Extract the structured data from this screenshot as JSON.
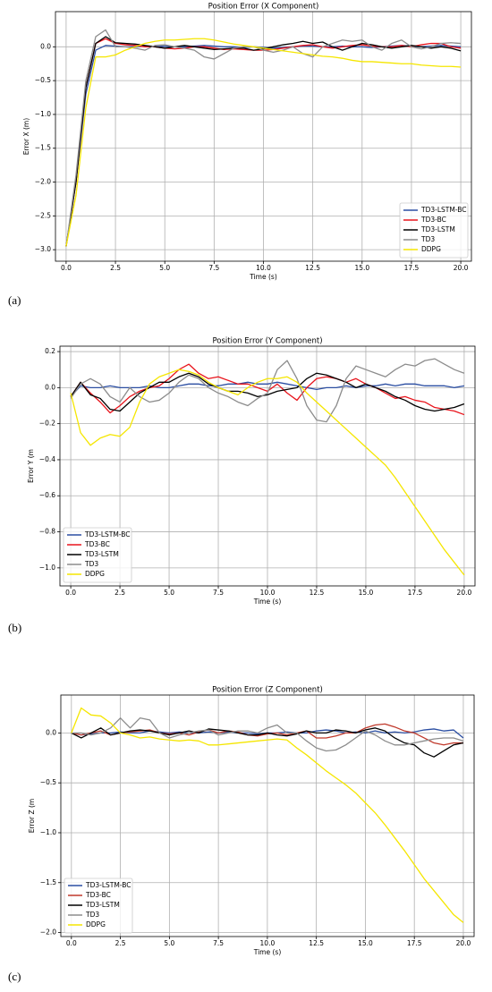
{
  "chart_data": [
    {
      "type": "line",
      "title": "Position Error (X Component)",
      "xlabel": "Time (s)",
      "ylabel": "Error X (m)",
      "label": "(a)",
      "grid": true,
      "legend": "lower right",
      "xlim": [
        -0.54,
        20.54
      ],
      "ylim": [
        -3.17,
        0.52
      ],
      "xticks": [
        {
          "value": 0,
          "label": "0.0"
        },
        2.5,
        {
          "value": 5,
          "label": "5.0"
        },
        7.5,
        {
          "value": 10,
          "label": "10.0"
        },
        12.5,
        {
          "value": 15,
          "label": "15.0"
        },
        17.5,
        {
          "value": 20,
          "label": "20.0"
        }
      ],
      "yticks": [
        {
          "value": 0,
          "label": "0.0"
        },
        {
          "value": -0.5,
          "label": "−0.5"
        },
        {
          "value": -1,
          "label": "−1.0"
        },
        {
          "value": -1.5,
          "label": "−1.5"
        },
        {
          "value": -2,
          "label": "−2.0"
        },
        {
          "value": -2.5,
          "label": "−2.5"
        },
        {
          "value": -3,
          "label": "−3.0"
        }
      ],
      "x": [
        0,
        0.5,
        1,
        1.5,
        2,
        2.5,
        3,
        3.5,
        4,
        4.5,
        5,
        5.5,
        6,
        6.5,
        7,
        7.5,
        8,
        8.5,
        9,
        9.5,
        10,
        10.5,
        11,
        11.5,
        12,
        12.5,
        13,
        13.5,
        14,
        14.5,
        15,
        15.5,
        16,
        16.5,
        17,
        17.5,
        18,
        18.5,
        19,
        19.5,
        20
      ],
      "series": [
        {
          "name": "TD3-LSTM-BC",
          "color": "#2b4ea2",
          "values": [
            -2.95,
            -2.0,
            -0.7,
            -0.05,
            0.02,
            0.01,
            0.0,
            0.0,
            0.01,
            0.0,
            0.01,
            0.0,
            0.0,
            0.01,
            0.02,
            0.01,
            0.0,
            0.0,
            -0.01,
            0.0,
            -0.01,
            -0.02,
            -0.01,
            0.0,
            0.01,
            0.01,
            0.0,
            0.0,
            0.01,
            0.0,
            0.0,
            -0.01,
            0.0,
            0.01,
            0.02,
            0.01,
            0.0,
            0.01,
            0.02,
            0.01,
            0.0
          ]
        },
        {
          "name": "TD3-BC",
          "color": "#e8141c",
          "values": [
            -2.95,
            -2.0,
            -0.6,
            0.05,
            0.12,
            0.05,
            0.03,
            0.02,
            0.0,
            0.0,
            -0.02,
            -0.03,
            -0.02,
            0.0,
            0.0,
            -0.02,
            -0.04,
            -0.03,
            -0.04,
            -0.05,
            -0.05,
            -0.04,
            -0.02,
            0.0,
            0.02,
            0.03,
            0.0,
            -0.02,
            0.0,
            0.02,
            0.03,
            0.01,
            0.0,
            0.0,
            0.02,
            0.0,
            0.03,
            0.05,
            0.05,
            0.0,
            -0.02
          ]
        },
        {
          "name": "TD3-LSTM",
          "color": "#000000",
          "values": [
            -2.95,
            -2.0,
            -0.6,
            0.05,
            0.15,
            0.06,
            0.05,
            0.04,
            0.02,
            0.0,
            -0.02,
            0.0,
            0.02,
            0.0,
            -0.02,
            -0.04,
            -0.03,
            -0.02,
            -0.02,
            -0.05,
            -0.03,
            0.0,
            0.03,
            0.05,
            0.08,
            0.05,
            0.07,
            0.0,
            -0.05,
            0.0,
            0.05,
            0.03,
            0.0,
            -0.02,
            0.0,
            0.02,
            0.0,
            -0.02,
            0.0,
            -0.02,
            -0.06
          ]
        },
        {
          "name": "TD3",
          "color": "#8c8c8c",
          "values": [
            -2.95,
            -1.9,
            -0.5,
            0.15,
            0.25,
            0.0,
            0.0,
            -0.02,
            -0.05,
            0.02,
            0.03,
            0.0,
            -0.02,
            -0.05,
            -0.15,
            -0.18,
            -0.1,
            -0.02,
            0.0,
            0.0,
            -0.05,
            -0.08,
            -0.05,
            0.0,
            -0.1,
            -0.15,
            0.0,
            0.05,
            0.1,
            0.08,
            0.1,
            0.0,
            -0.05,
            0.05,
            0.1,
            0.0,
            -0.03,
            0.0,
            0.05,
            0.06,
            0.05
          ]
        },
        {
          "name": "DDPG",
          "color": "#f5e600",
          "values": [
            -2.95,
            -2.2,
            -0.9,
            -0.15,
            -0.15,
            -0.12,
            -0.05,
            0.0,
            0.05,
            0.08,
            0.1,
            0.1,
            0.11,
            0.12,
            0.12,
            0.1,
            0.07,
            0.04,
            0.02,
            0.0,
            -0.02,
            -0.04,
            -0.06,
            -0.08,
            -0.1,
            -0.12,
            -0.14,
            -0.15,
            -0.17,
            -0.2,
            -0.22,
            -0.22,
            -0.23,
            -0.24,
            -0.25,
            -0.25,
            -0.27,
            -0.28,
            -0.29,
            -0.29,
            -0.3
          ]
        }
      ]
    },
    {
      "type": "line",
      "title": "Position Error (Y Component)",
      "xlabel": "Time (s)",
      "ylabel": "Error Y (m",
      "label": "(b)",
      "grid": true,
      "legend": "lower left",
      "xlim": [
        -0.55,
        20.55
      ],
      "ylim": [
        -1.1,
        0.23
      ],
      "xticks": [
        {
          "value": 0,
          "label": "0.0"
        },
        2.5,
        {
          "value": 5,
          "label": "5.0"
        },
        7.5,
        {
          "value": 10,
          "label": "10.0"
        },
        12.5,
        {
          "value": 15,
          "label": "15.0"
        },
        17.5,
        {
          "value": 20,
          "label": "20.0"
        }
      ],
      "yticks": [
        0.2,
        {
          "value": 0,
          "label": "0.0"
        },
        {
          "value": -0.2,
          "label": "−0.2"
        },
        {
          "value": -0.4,
          "label": "−0.4"
        },
        {
          "value": -0.6,
          "label": "−0.6"
        },
        {
          "value": -0.8,
          "label": "−0.8"
        },
        {
          "value": -1,
          "label": "−1.0"
        }
      ],
      "x": [
        0,
        0.5,
        1,
        1.5,
        2,
        2.5,
        3,
        3.5,
        4,
        4.5,
        5,
        5.5,
        6,
        6.5,
        7,
        7.5,
        8,
        8.5,
        9,
        9.5,
        10,
        10.5,
        11,
        11.5,
        12,
        12.5,
        13,
        13.5,
        14,
        14.5,
        15,
        15.5,
        16,
        16.5,
        17,
        17.5,
        18,
        18.5,
        19,
        19.5,
        20
      ],
      "series": [
        {
          "name": "TD3-LSTM-BC",
          "color": "#2b4ea2",
          "values": [
            -0.05,
            0.01,
            0.0,
            0.0,
            0.01,
            0.0,
            0.0,
            0.0,
            0.01,
            0.0,
            0.0,
            0.01,
            0.02,
            0.02,
            0.01,
            0.01,
            0.02,
            0.02,
            0.03,
            0.02,
            0.02,
            0.03,
            0.02,
            0.01,
            0.0,
            -0.01,
            0.0,
            0.0,
            0.01,
            0.0,
            0.01,
            0.01,
            0.02,
            0.01,
            0.02,
            0.02,
            0.01,
            0.01,
            0.01,
            0.0,
            0.01
          ]
        },
        {
          "name": "TD3-BC",
          "color": "#e8141c",
          "values": [
            -0.05,
            0.03,
            -0.03,
            -0.08,
            -0.14,
            -0.1,
            -0.05,
            -0.02,
            0.0,
            0.01,
            0.05,
            0.1,
            0.13,
            0.08,
            0.05,
            0.06,
            0.04,
            0.02,
            0.02,
            0.0,
            -0.02,
            0.02,
            -0.03,
            -0.07,
            0.0,
            0.05,
            0.06,
            0.05,
            0.03,
            0.05,
            0.02,
            0.0,
            -0.03,
            -0.06,
            -0.05,
            -0.07,
            -0.08,
            -0.11,
            -0.12,
            -0.13,
            -0.15
          ]
        },
        {
          "name": "TD3-LSTM",
          "color": "#000000",
          "values": [
            -0.05,
            0.03,
            -0.04,
            -0.06,
            -0.12,
            -0.13,
            -0.08,
            -0.03,
            0.0,
            0.03,
            0.03,
            0.06,
            0.08,
            0.06,
            0.02,
            0.0,
            -0.02,
            -0.02,
            -0.03,
            -0.05,
            -0.04,
            -0.02,
            -0.01,
            0.0,
            0.05,
            0.08,
            0.07,
            0.05,
            0.03,
            0.0,
            0.02,
            0.0,
            -0.02,
            -0.05,
            -0.07,
            -0.1,
            -0.12,
            -0.13,
            -0.12,
            -0.11,
            -0.09
          ]
        },
        {
          "name": "TD3",
          "color": "#8c8c8c",
          "values": [
            -0.06,
            0.02,
            0.05,
            0.02,
            -0.05,
            -0.08,
            0.0,
            -0.05,
            -0.08,
            -0.07,
            -0.03,
            0.03,
            0.07,
            0.05,
            0.0,
            -0.03,
            -0.05,
            -0.08,
            -0.1,
            -0.06,
            -0.03,
            0.1,
            0.15,
            0.05,
            -0.1,
            -0.18,
            -0.19,
            -0.1,
            0.05,
            0.12,
            0.1,
            0.08,
            0.06,
            0.1,
            0.13,
            0.12,
            0.15,
            0.16,
            0.13,
            0.1,
            0.08
          ]
        },
        {
          "name": "DDPG",
          "color": "#f5e600",
          "values": [
            -0.03,
            -0.25,
            -0.32,
            -0.28,
            -0.26,
            -0.27,
            -0.22,
            -0.08,
            0.02,
            0.06,
            0.08,
            0.1,
            0.09,
            0.07,
            0.03,
            0.0,
            -0.02,
            -0.04,
            0.0,
            0.03,
            0.05,
            0.05,
            0.06,
            0.03,
            -0.03,
            -0.08,
            -0.13,
            -0.18,
            -0.23,
            -0.28,
            -0.33,
            -0.38,
            -0.43,
            -0.5,
            -0.58,
            -0.66,
            -0.74,
            -0.82,
            -0.9,
            -0.97,
            -1.04
          ]
        }
      ]
    },
    {
      "type": "line",
      "title": "Position Error (Z Component)",
      "xlabel": "Time (s)",
      "ylabel": "Error Z (m",
      "label": "(c)",
      "grid": true,
      "legend": "lower left",
      "xlim": [
        -0.54,
        20.55
      ],
      "ylim": [
        -2.04,
        0.38
      ],
      "xticks": [
        {
          "value": 0,
          "label": "0.0"
        },
        2.5,
        {
          "value": 5,
          "label": "5.0"
        },
        7.5,
        {
          "value": 10,
          "label": "10.0"
        },
        12.5,
        {
          "value": 15,
          "label": "15.0"
        },
        17.5,
        {
          "value": 20,
          "label": "20.0"
        }
      ],
      "yticks": [
        {
          "value": 0,
          "label": "0.0"
        },
        {
          "value": -0.5,
          "label": "−0.5"
        },
        {
          "value": -1,
          "label": "−1.0"
        },
        {
          "value": -1.5,
          "label": "−1.5"
        },
        {
          "value": -2,
          "label": "−2.0"
        }
      ],
      "x": [
        0,
        0.5,
        1,
        1.5,
        2,
        2.5,
        3,
        3.5,
        4,
        4.5,
        5,
        5.5,
        6,
        6.5,
        7,
        7.5,
        8,
        8.5,
        9,
        9.5,
        10,
        10.5,
        11,
        11.5,
        12,
        12.5,
        13,
        13.5,
        14,
        14.5,
        15,
        15.5,
        16,
        16.5,
        17,
        17.5,
        18,
        18.5,
        19,
        19.5,
        20
      ],
      "series": [
        {
          "name": "TD3-LSTM-BC",
          "color": "#2b4ea2",
          "values": [
            0.0,
            -0.02,
            -0.01,
            0.0,
            0.0,
            0.01,
            0.0,
            0.0,
            0.02,
            0.01,
            0.0,
            0.01,
            0.0,
            0.0,
            0.01,
            0.0,
            0.01,
            0.0,
            0.0,
            -0.01,
            0.0,
            0.0,
            0.01,
            0.0,
            0.0,
            0.02,
            0.03,
            0.02,
            0.0,
            0.01,
            0.0,
            0.02,
            0.0,
            0.01,
            0.0,
            0.01,
            0.03,
            0.04,
            0.02,
            0.03,
            -0.05
          ]
        },
        {
          "name": "TD3-BC",
          "color": "#c0392b",
          "values": [
            0.0,
            -0.02,
            0.0,
            0.02,
            -0.02,
            0.0,
            0.01,
            0.02,
            0.03,
            0.0,
            -0.01,
            0.0,
            -0.02,
            0.01,
            0.03,
            0.0,
            0.02,
            0.01,
            -0.02,
            -0.03,
            -0.01,
            0.0,
            -0.02,
            0.0,
            0.02,
            -0.05,
            -0.05,
            -0.03,
            0.0,
            0.0,
            0.05,
            0.08,
            0.09,
            0.06,
            0.02,
            0.0,
            -0.05,
            -0.1,
            -0.12,
            -0.1,
            -0.1
          ]
        },
        {
          "name": "TD3-LSTM",
          "color": "#000000",
          "values": [
            0.0,
            -0.05,
            0.0,
            0.05,
            -0.02,
            0.0,
            0.02,
            0.03,
            0.02,
            0.0,
            -0.02,
            0.0,
            0.02,
            0.0,
            0.04,
            0.03,
            0.02,
            0.0,
            -0.02,
            -0.02,
            0.0,
            -0.02,
            -0.03,
            -0.01,
            0.02,
            0.0,
            0.0,
            0.03,
            0.02,
            0.0,
            0.03,
            0.05,
            0.02,
            -0.05,
            -0.1,
            -0.12,
            -0.2,
            -0.24,
            -0.18,
            -0.12,
            -0.1
          ]
        },
        {
          "name": "TD3",
          "color": "#8c8c8c",
          "values": [
            0.0,
            0.0,
            -0.02,
            0.0,
            0.05,
            0.15,
            0.05,
            0.15,
            0.13,
            0.0,
            -0.05,
            -0.02,
            0.0,
            0.02,
            0.03,
            -0.02,
            0.0,
            0.02,
            0.02,
            0.0,
            0.05,
            0.08,
            0.0,
            0.0,
            -0.08,
            -0.15,
            -0.18,
            -0.17,
            -0.12,
            -0.05,
            0.02,
            -0.02,
            -0.08,
            -0.12,
            -0.12,
            -0.1,
            -0.08,
            -0.06,
            -0.05,
            -0.05,
            -0.08
          ]
        },
        {
          "name": "DDPG",
          "color": "#f5e600",
          "values": [
            0.0,
            0.25,
            0.18,
            0.17,
            0.1,
            0.0,
            -0.02,
            -0.05,
            -0.04,
            -0.06,
            -0.07,
            -0.08,
            -0.07,
            -0.08,
            -0.12,
            -0.12,
            -0.11,
            -0.1,
            -0.09,
            -0.08,
            -0.07,
            -0.06,
            -0.07,
            -0.15,
            -0.22,
            -0.3,
            -0.38,
            -0.45,
            -0.52,
            -0.6,
            -0.7,
            -0.8,
            -0.92,
            -1.05,
            -1.18,
            -1.32,
            -1.46,
            -1.58,
            -1.7,
            -1.82,
            -1.9
          ]
        }
      ]
    }
  ]
}
